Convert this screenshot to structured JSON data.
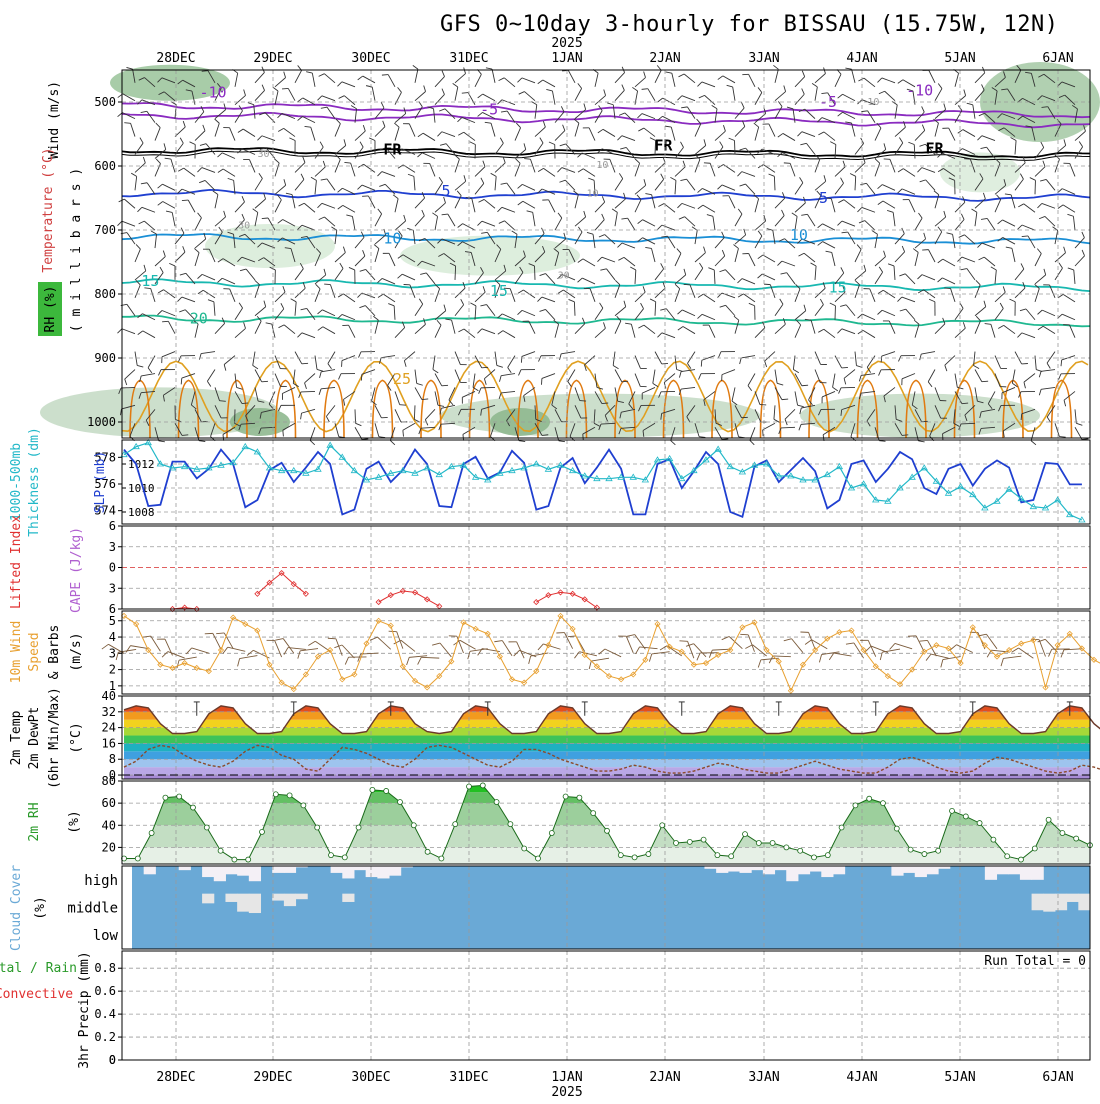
{
  "title": "GFS 0~10day 3-hourly for BISSAU (15.75W, 12N)",
  "colors": {
    "grid": "#9a9a9a",
    "slp": "#1f3fd0",
    "thickness": "#22b8c8",
    "lifted": "#e03030",
    "wind10m": "#e8a030",
    "dewpoint": "#8b4a2a",
    "rh2m": "#2a9a2a",
    "cloud": "#6aa9d6",
    "cloud_clear": "#f4f0f6"
  },
  "x_axis": {
    "dates": [
      "28DEC",
      "29DEC",
      "30DEC",
      "31DEC",
      "1JAN",
      "2JAN",
      "3JAN",
      "4JAN",
      "5JAN",
      "6JAN"
    ],
    "year": "2025",
    "year_under": "1JAN"
  },
  "panel_labels": {
    "upper_wind": "Wind (m/s)",
    "upper_temp": "Temperature (°C)",
    "upper_rh": "RH (%)",
    "upper_pressure": "( m i l l i b a r s )",
    "thickness_1": "1000-500mb",
    "thickness_2": "Thickness (dm)",
    "slp": "SLP (mb)",
    "lifted": "Lifted Index",
    "cape": "CAPE (J/kg)",
    "wind10_1": "10m Wind",
    "wind10_2": "Speed",
    "wind10_3": "& Barbs",
    "wind10_unit": "(m/s)",
    "temp_1": "2m Temp",
    "temp_2": "2m DewPt",
    "temp_3": "(6hr Min/Max)",
    "temp_unit": "(°C)",
    "rh_1": "2m RH",
    "rh_unit": "(%)",
    "cloud_1": "Cloud Cover",
    "cloud_unit": "(%)",
    "cloud_high": "high",
    "cloud_middle": "middle",
    "cloud_low": "low",
    "precip_1": "Total / Rain",
    "precip_2": "Convective",
    "precip_3": "3hr Precip (mm)",
    "run_total": "Run Total = 0"
  },
  "chart_data": [
    {
      "type": "contour",
      "name": "upper-air cross section",
      "y_axis_label": "millibars",
      "ticks": [
        500,
        600,
        700,
        800,
        900,
        1000
      ],
      "ylim": [
        450,
        1025
      ],
      "contour_labels": [
        {
          "v": "-10",
          "x": 0.08,
          "p": 485
        },
        {
          "v": "-10",
          "x": 0.81,
          "p": 482
        },
        {
          "v": "-5",
          "x": 0.37,
          "p": 512
        },
        {
          "v": "-5",
          "x": 0.72,
          "p": 500
        },
        {
          "v": "FR",
          "x": 0.27,
          "p": 574
        },
        {
          "v": "FR",
          "x": 0.55,
          "p": 568
        },
        {
          "v": "FR",
          "x": 0.83,
          "p": 573
        },
        {
          "v": "5",
          "x": 0.33,
          "p": 639
        },
        {
          "v": "5",
          "x": 0.72,
          "p": 650
        },
        {
          "v": "10",
          "x": 0.27,
          "p": 713
        },
        {
          "v": "10",
          "x": 0.69,
          "p": 708
        },
        {
          "v": "15",
          "x": 0.02,
          "p": 780
        },
        {
          "v": "15",
          "x": 0.38,
          "p": 795
        },
        {
          "v": "15",
          "x": 0.73,
          "p": 790
        },
        {
          "v": "20",
          "x": 0.07,
          "p": 838
        },
        {
          "v": "25",
          "x": 0.28,
          "p": 933
        },
        {
          "v": "30",
          "x": 0.14,
          "p": 578
        },
        {
          "v": "30",
          "x": 0.12,
          "p": 690
        },
        {
          "v": "30",
          "x": 0.45,
          "p": 768
        },
        {
          "v": "10",
          "x": 0.48,
          "p": 640
        },
        {
          "v": "10",
          "x": 0.49,
          "p": 595
        },
        {
          "v": "10",
          "x": 0.77,
          "p": 497
        }
      ]
    },
    {
      "type": "line",
      "name": "thickness and SLP",
      "left_ticks": [
        574,
        576,
        578
      ],
      "right_ticks": [
        1008,
        1010,
        1012
      ],
      "ylim_left": [
        573,
        579.3
      ],
      "ylim_right": [
        1007,
        1014
      ],
      "series": [
        {
          "name": "SLP (mb)",
          "axis": "right",
          "values": [
            1013.2,
            1012,
            1008.5,
            1008.6,
            1012.2,
            1012.2,
            1010.8,
            1011.6,
            1013.2,
            1012,
            1008.4,
            1009,
            1011.5,
            1012.1,
            1010.5,
            1011.7,
            1013,
            1012,
            1007.8,
            1008.2,
            1011.6,
            1012.2,
            1010.5,
            1011.5,
            1013.2,
            1012,
            1008.5,
            1008.4,
            1012,
            1012.6,
            1010.8,
            1011.3,
            1013.1,
            1012.1,
            1008.2,
            1008.5,
            1011.7,
            1012.5,
            1010.4,
            1011.7,
            1013.2,
            1011.6,
            1007.8,
            1007.8,
            1012,
            1012.4,
            1010,
            1011.4,
            1013,
            1012,
            1008,
            1007.6,
            1011.8,
            1012.3,
            1010.5,
            1011.5,
            1012.5,
            1011.4,
            1008.3,
            1009,
            1012,
            1012.3,
            1010.5,
            1011.6,
            1013,
            1012.4,
            1010,
            1009.5,
            1011.6,
            1012,
            1010.2,
            1011.6,
            1012.3,
            1011.7,
            1008.8,
            1009,
            1012.1,
            1012,
            1010.3,
            1010.3
          ]
        },
        {
          "name": "1000-500mb Thickness (dm)",
          "axis": "left",
          "values": [
            578.2,
            578.8,
            579.1,
            577.5,
            577.2,
            577.3,
            577.1,
            577.2,
            577.4,
            577.6,
            578.8,
            578.4,
            577.2,
            577,
            577,
            576.8,
            577.1,
            578.9,
            578,
            577,
            576.3,
            576.5,
            576.8,
            577,
            576.8,
            577.2,
            576.7,
            577.3,
            577.4,
            576.5,
            576.3,
            576.8,
            577,
            577.2,
            577.5,
            577.1,
            577.4,
            577,
            576.6,
            576.4,
            576.4,
            576.5,
            576.5,
            576.3,
            577.8,
            577.9,
            576.4,
            577,
            577.8,
            578.6,
            577.3,
            576.9,
            577.4,
            577.5,
            576.6,
            576.6,
            576.3,
            576.3,
            576.7,
            577.3,
            575.7,
            576,
            574.8,
            574.7,
            575.7,
            576.5,
            577.2,
            576.2,
            575.3,
            575.8,
            575.2,
            574.2,
            574.7,
            575.6,
            574.9,
            574.3,
            574.2,
            574.8,
            573.7,
            573.3
          ]
        }
      ]
    },
    {
      "type": "line",
      "name": "lifted index",
      "ticks": [
        -6,
        -3,
        0,
        3,
        6
      ],
      "tick_labels": [
        "6",
        "3",
        "0",
        "3",
        "6"
      ],
      "ylim": [
        -6,
        6
      ],
      "series": [
        {
          "name": "Lifted Index",
          "values": [
            null,
            null,
            null,
            null,
            6,
            5.8,
            6,
            null,
            null,
            null,
            null,
            3.8,
            2.2,
            0.8,
            2.4,
            3.8,
            null,
            null,
            null,
            null,
            null,
            5,
            4,
            3.4,
            3.6,
            4.6,
            5.6,
            null,
            null,
            null,
            null,
            null,
            null,
            null,
            5,
            4,
            3.6,
            3.8,
            4.6,
            5.8
          ]
        }
      ]
    },
    {
      "type": "line",
      "name": "10m wind speed",
      "ticks": [
        1,
        2,
        3,
        4,
        5
      ],
      "ylim": [
        0.5,
        5.6
      ],
      "series": [
        {
          "name": "10m Wind Speed (m/s)",
          "values": [
            5.3,
            4.8,
            3.2,
            2.3,
            2.1,
            2.4,
            2.1,
            1.9,
            3.2,
            5.2,
            4.8,
            4.4,
            2.3,
            1.2,
            0.8,
            1.7,
            2.8,
            3.2,
            1.4,
            1.7,
            3.6,
            5,
            4.7,
            2.2,
            1.3,
            0.9,
            1.6,
            2.5,
            4.9,
            4.5,
            4.2,
            2.8,
            1.4,
            1.2,
            1.9,
            3.5,
            5.3,
            4.5,
            2.9,
            2.2,
            1.6,
            1.4,
            1.7,
            2.6,
            4.8,
            3.4,
            3.1,
            2.3,
            2.4,
            2.9,
            3.2,
            4.6,
            4.9,
            3.2,
            2.5,
            0.7,
            2.3,
            3.2,
            3.9,
            4.3,
            4.4,
            3.2,
            2.2,
            1.6,
            1.1,
            2,
            3.1,
            3.5,
            3.3,
            2.4,
            4.6,
            3.5,
            2.8,
            3.2,
            3.6,
            3.8,
            0.9,
            3.5,
            4.2,
            3.3,
            2.6,
            2.2
          ]
        }
      ]
    },
    {
      "type": "area",
      "name": "2m temperature and dewpoint",
      "ticks": [
        0,
        8,
        16,
        24,
        32,
        40
      ],
      "ylim": [
        -2,
        40
      ],
      "series": [
        {
          "name": "2m Temp (°C)",
          "values": [
            33,
            35,
            34,
            26,
            21,
            21,
            22,
            31,
            35,
            34,
            26,
            21,
            21,
            22,
            31,
            35,
            34,
            26,
            21,
            21,
            22,
            31,
            35,
            34,
            26,
            22,
            21,
            22,
            31,
            35,
            34,
            26,
            21,
            21,
            22,
            31,
            35,
            34,
            26,
            21,
            21,
            22,
            31,
            35,
            34,
            26,
            21,
            21,
            22,
            31,
            35,
            34,
            26,
            21,
            21,
            22,
            31,
            35,
            34,
            26,
            21,
            21,
            22,
            31,
            35,
            34,
            26,
            21,
            21,
            22,
            31,
            35,
            34,
            26,
            21,
            21,
            22,
            31,
            35,
            34,
            26,
            21,
            21
          ]
        },
        {
          "name": "2m DewPt (°C)",
          "values": [
            4,
            7,
            13,
            15,
            14,
            10,
            7,
            5,
            4,
            7,
            12,
            15,
            14,
            10,
            8,
            3,
            2,
            8,
            14,
            13,
            11,
            8,
            5,
            4,
            8,
            14,
            15,
            14,
            11,
            8,
            5,
            4,
            7,
            13,
            13,
            11,
            8,
            6,
            4,
            2,
            2,
            3,
            5,
            4,
            2,
            1,
            1,
            2,
            4,
            6,
            5,
            3,
            2,
            1,
            1,
            3,
            5,
            7,
            5,
            3,
            2,
            1,
            1,
            4,
            8,
            9,
            7,
            4,
            2,
            1,
            2,
            6,
            9,
            8,
            6,
            4,
            2,
            1,
            2,
            5,
            4,
            2,
            0
          ]
        }
      ]
    },
    {
      "type": "area",
      "name": "2m relative humidity",
      "ticks": [
        20,
        40,
        60,
        80
      ],
      "ylim": [
        5,
        80
      ],
      "series": [
        {
          "name": "2m RH (%)",
          "values": [
            10,
            10,
            33,
            65,
            66,
            56,
            38,
            17,
            9,
            9,
            34,
            68,
            67,
            58,
            38,
            13,
            11,
            38,
            72,
            71,
            61,
            40,
            16,
            10,
            41,
            75,
            76,
            61,
            41,
            19,
            10,
            33,
            66,
            65,
            51,
            35,
            13,
            11,
            14,
            40,
            24,
            25,
            27,
            13,
            12,
            32,
            24,
            24,
            20,
            17,
            11,
            13,
            38,
            58,
            64,
            60,
            37,
            18,
            14,
            17,
            53,
            48,
            42,
            27,
            12,
            9,
            19,
            45,
            33,
            28,
            22
          ]
        }
      ]
    },
    {
      "type": "heatmap",
      "name": "cloud cover",
      "rows": [
        "high",
        "middle",
        "low"
      ],
      "clear_fraction": {
        "high": [
          0,
          0.3,
          0,
          0,
          0.15,
          0,
          0.4,
          0.55,
          0.3,
          0.35,
          0.55,
          0,
          0.25,
          0.25,
          0.05,
          0,
          0,
          0.25,
          0.45,
          0.15,
          0.4,
          0.45,
          0.35,
          0.05,
          0,
          0,
          0,
          0,
          0,
          0,
          0,
          0,
          0,
          0,
          0,
          0,
          0,
          0,
          0,
          0,
          0,
          0,
          0,
          0,
          0,
          0,
          0,
          0,
          0,
          0.1,
          0.25,
          0.2,
          0.25,
          0.15,
          0.3,
          0.15,
          0.55,
          0.3,
          0.2,
          0.4,
          0.3,
          0,
          0,
          0,
          0,
          0.35,
          0.25,
          0.4,
          0.3,
          0.1,
          0,
          0,
          0,
          0.5,
          0.3,
          0.3,
          0.5,
          0.5,
          0,
          0,
          0,
          0
        ],
        "middle": [
          0,
          0,
          0,
          0,
          0,
          0,
          0.35,
          0,
          0.3,
          0.65,
          0.7,
          0,
          0.25,
          0.45,
          0.2,
          0,
          0,
          0,
          0.3,
          0,
          0,
          0,
          0,
          0,
          0,
          0,
          0,
          0,
          0,
          0,
          0,
          0,
          0,
          0,
          0,
          0,
          0,
          0,
          0,
          0,
          0,
          0,
          0,
          0,
          0,
          0,
          0,
          0,
          0,
          0,
          0,
          0,
          0,
          0,
          0,
          0,
          0,
          0,
          0,
          0,
          0,
          0,
          0,
          0,
          0,
          0,
          0,
          0,
          0,
          0,
          0,
          0,
          0,
          0,
          0,
          0,
          0,
          0.6,
          0.65,
          0.6,
          0.3,
          0.6
        ]
      }
    },
    {
      "type": "bar",
      "name": "3hr precipitation",
      "ticks": [
        0,
        0.2,
        0.4,
        0.6,
        0.8
      ],
      "ylim": [
        0,
        0.95
      ],
      "series": [
        {
          "name": "3hr Precip (mm)",
          "values": []
        }
      ]
    }
  ]
}
